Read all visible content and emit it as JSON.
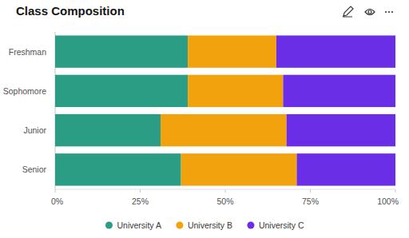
{
  "chart_data": {
    "type": "bar",
    "title": "Class Composition",
    "orientation": "horizontal",
    "stacked": true,
    "grid": false,
    "legend": "bottom",
    "categories": [
      "Freshman",
      "Sophomore",
      "Junior",
      "Senior"
    ],
    "series": [
      {
        "name": "University A",
        "color": "#2a9d84",
        "values": [
          39,
          39,
          31,
          37
        ]
      },
      {
        "name": "University B",
        "color": "#f2a20c",
        "values": [
          26,
          28,
          37,
          34
        ]
      },
      {
        "name": "University C",
        "color": "#6a2ee6",
        "values": [
          35,
          33,
          32,
          29
        ]
      }
    ],
    "xlim": [
      0,
      100
    ],
    "xticks": [
      {
        "value": 0,
        "label": "0%"
      },
      {
        "value": 25,
        "label": "25%"
      },
      {
        "value": 50,
        "label": "50%"
      },
      {
        "value": 75,
        "label": "75%"
      },
      {
        "value": 100,
        "label": "100%"
      }
    ]
  }
}
